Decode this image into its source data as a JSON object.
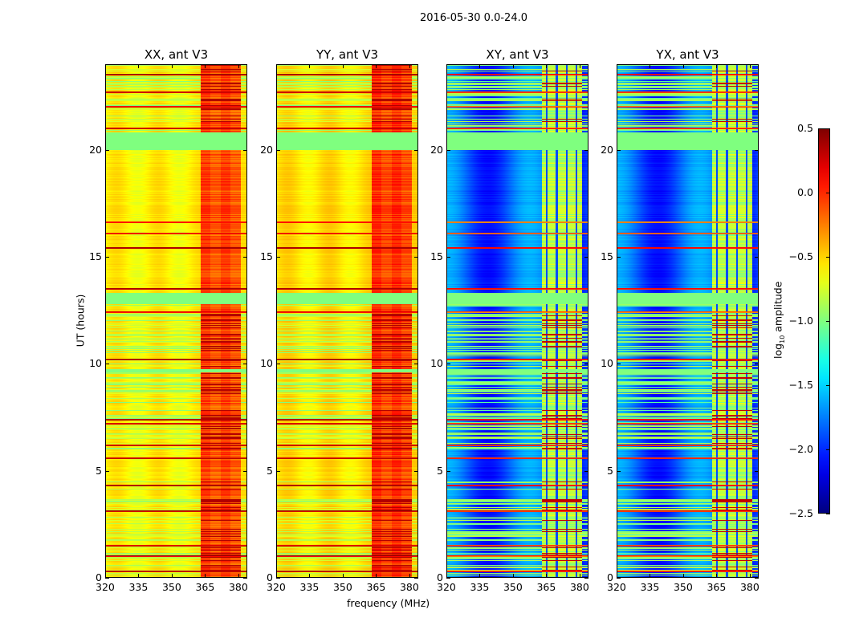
{
  "chart_data": {
    "type": "heatmap",
    "suptitle": "2016-05-30 0.0-24.0",
    "xlabel": "frequency (MHz)",
    "ylabel": "UT (hours)",
    "xlim": [
      320,
      384
    ],
    "ylim": [
      0,
      24
    ],
    "xticks": [
      "320",
      "335",
      "350",
      "365",
      "380"
    ],
    "xtick_values": [
      320,
      335,
      350,
      365,
      380
    ],
    "yticks": [
      "0",
      "5",
      "10",
      "15",
      "20"
    ],
    "ytick_values": [
      0,
      5,
      10,
      15,
      20
    ],
    "colormap": "jet",
    "colorbar": {
      "label_prefix": "log",
      "label_sub": "10",
      "label_suffix": " amplitude",
      "range": [
        -2.5,
        0.5
      ],
      "ticks": [
        "0.5",
        "0.0",
        "−0.5",
        "−1.0",
        "−1.5",
        "−2.0",
        "−2.5"
      ],
      "tick_values": [
        0.5,
        0.0,
        -0.5,
        -1.0,
        -1.5,
        -2.0,
        -2.5
      ]
    },
    "rfi_band_mhz": [
      363,
      381
    ],
    "flagged_hours": [
      [
        12.8,
        13.3
      ],
      [
        20.0,
        20.8
      ],
      [
        9.6,
        9.75
      ]
    ],
    "strong_rfi_hours": [
      0.3,
      1.0,
      1.5,
      3.1,
      4.3,
      5.6,
      6.2,
      7.2,
      7.4,
      10.2,
      12.4,
      13.5,
      15.4,
      16.1,
      16.6,
      21.0,
      22.0,
      22.7,
      23.5
    ],
    "panels": [
      {
        "title": "XX, ant V3",
        "type": "auto",
        "base_level": -0.6,
        "rfi_band_level": -0.25
      },
      {
        "title": "YY, ant V3",
        "type": "auto",
        "base_level": -0.55,
        "rfi_band_level": -0.2
      },
      {
        "title": "XY, ant V3",
        "type": "cross",
        "base_level": -1.85,
        "rfi_band_level": -0.85
      },
      {
        "title": "YX, ant V3",
        "type": "cross",
        "base_level": -1.85,
        "rfi_band_level": -0.85
      }
    ]
  }
}
